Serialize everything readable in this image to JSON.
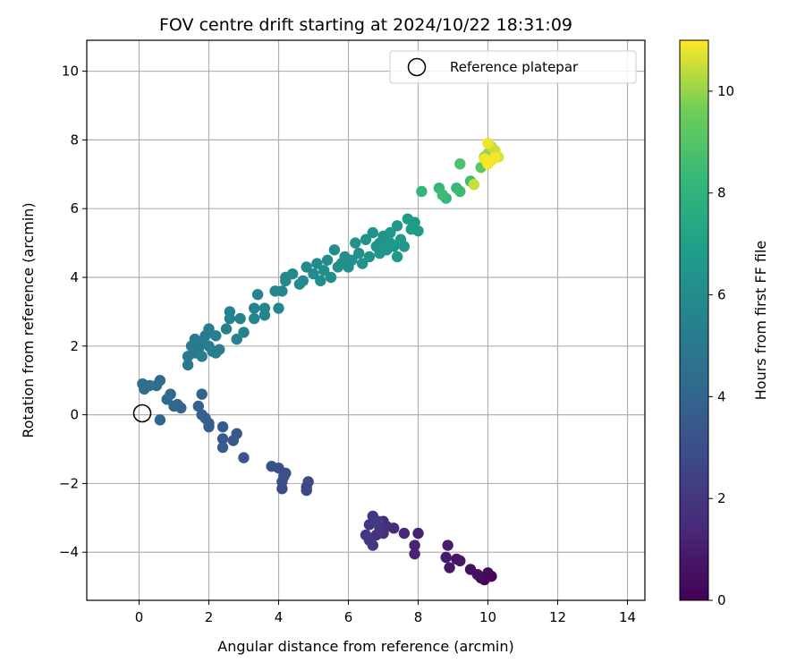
{
  "chart_data": {
    "type": "scatter",
    "title": "FOV centre drift starting at 2024/10/22 18:31:09",
    "xlabel": "Angular distance from reference (arcmin)",
    "ylabel": "Rotation from reference (arcmin)",
    "xlim": [
      -1.5,
      14.5
    ],
    "ylim": [
      -5.4,
      10.9
    ],
    "xticks": [
      0,
      2,
      4,
      6,
      8,
      10,
      12,
      14
    ],
    "yticks": [
      -4,
      -2,
      0,
      2,
      4,
      6,
      8,
      10
    ],
    "grid": true,
    "legend": {
      "placement": "top-right",
      "entries": [
        "Reference platepar"
      ]
    },
    "reference_point": {
      "x": 0,
      "y": 0
    },
    "colorbar": {
      "label": "Hours from first FF file",
      "range": [
        0,
        11
      ],
      "ticks": [
        0,
        2,
        4,
        6,
        8,
        10
      ],
      "colormap": "viridis"
    },
    "points": [
      [
        9.9,
        -4.8,
        0.1
      ],
      [
        10.1,
        -4.7,
        0.2
      ],
      [
        10.0,
        -4.6,
        0.3
      ],
      [
        9.8,
        -4.75,
        0.35
      ],
      [
        9.5,
        -4.5,
        0.5
      ],
      [
        9.7,
        -4.65,
        0.45
      ],
      [
        9.1,
        -4.2,
        0.7
      ],
      [
        9.2,
        -4.25,
        0.75
      ],
      [
        8.9,
        -4.45,
        0.8
      ],
      [
        8.8,
        -4.15,
        0.9
      ],
      [
        8.85,
        -3.8,
        1.0
      ],
      [
        8.0,
        -3.45,
        1.1
      ],
      [
        7.9,
        -3.8,
        1.2
      ],
      [
        7.9,
        -4.05,
        1.25
      ],
      [
        7.6,
        -3.45,
        1.4
      ],
      [
        7.3,
        -3.3,
        1.5
      ],
      [
        7.0,
        -3.1,
        1.6
      ],
      [
        7.1,
        -3.25,
        1.65
      ],
      [
        7.0,
        -3.45,
        1.7
      ],
      [
        6.8,
        -3.5,
        1.75
      ],
      [
        6.7,
        -2.95,
        1.85
      ],
      [
        6.9,
        -3.3,
        1.9
      ],
      [
        6.6,
        -3.2,
        1.95
      ],
      [
        6.5,
        -3.5,
        2.0
      ],
      [
        6.6,
        -3.65,
        2.05
      ],
      [
        6.7,
        -3.8,
        2.1
      ],
      [
        6.85,
        -3.1,
        2.15
      ],
      [
        4.8,
        -2.1,
        2.6
      ],
      [
        4.85,
        -1.95,
        2.65
      ],
      [
        4.8,
        -2.2,
        2.7
      ],
      [
        4.1,
        -2.15,
        2.85
      ],
      [
        4.2,
        -1.7,
        2.9
      ],
      [
        4.1,
        -1.95,
        2.95
      ],
      [
        4.0,
        -1.55,
        3.0
      ],
      [
        4.15,
        -1.8,
        3.05
      ],
      [
        3.8,
        -1.5,
        3.1
      ],
      [
        3.0,
        -1.25,
        3.3
      ],
      [
        2.8,
        -0.55,
        3.4
      ],
      [
        2.7,
        -0.75,
        3.45
      ],
      [
        2.4,
        -0.7,
        3.5
      ],
      [
        2.4,
        -0.95,
        3.55
      ],
      [
        2.4,
        -0.35,
        3.6
      ],
      [
        2.0,
        -0.25,
        3.7
      ],
      [
        2.0,
        -0.35,
        3.75
      ],
      [
        1.8,
        0.0,
        3.8
      ],
      [
        1.9,
        -0.1,
        3.85
      ],
      [
        1.7,
        0.25,
        3.9
      ],
      [
        1.8,
        0.6,
        3.95
      ],
      [
        1.2,
        0.2,
        4.0
      ],
      [
        1.1,
        0.3,
        4.05
      ],
      [
        0.6,
        -0.15,
        4.1
      ],
      [
        1.0,
        0.25,
        4.15
      ],
      [
        0.8,
        0.45,
        4.2
      ],
      [
        0.9,
        0.6,
        4.25
      ],
      [
        0.6,
        1.0,
        4.35
      ],
      [
        0.5,
        0.85,
        4.4
      ],
      [
        0.1,
        0.9,
        4.45
      ],
      [
        0.15,
        0.75,
        4.5
      ],
      [
        0.3,
        0.85,
        4.55
      ],
      [
        1.4,
        1.45,
        4.9
      ],
      [
        1.4,
        1.7,
        4.95
      ],
      [
        1.6,
        1.8,
        5.0
      ],
      [
        1.5,
        2.0,
        5.0
      ],
      [
        1.7,
        1.9,
        5.05
      ],
      [
        1.8,
        2.1,
        5.1
      ],
      [
        1.9,
        2.3,
        5.1
      ],
      [
        2.0,
        2.5,
        5.15
      ],
      [
        1.6,
        2.2,
        5.15
      ],
      [
        2.2,
        1.8,
        5.2
      ],
      [
        2.1,
        1.85,
        5.2
      ],
      [
        1.8,
        1.7,
        5.25
      ],
      [
        2.0,
        2.0,
        5.25
      ],
      [
        2.3,
        1.9,
        5.3
      ],
      [
        2.2,
        2.3,
        5.3
      ],
      [
        2.5,
        2.5,
        5.35
      ],
      [
        2.6,
        2.8,
        5.4
      ],
      [
        2.8,
        2.2,
        5.4
      ],
      [
        2.9,
        2.8,
        5.45
      ],
      [
        2.6,
        3.0,
        5.5
      ],
      [
        3.0,
        2.4,
        5.5
      ],
      [
        3.3,
        3.1,
        5.55
      ],
      [
        3.3,
        2.8,
        5.6
      ],
      [
        3.4,
        3.5,
        5.6
      ],
      [
        3.6,
        3.1,
        5.65
      ],
      [
        3.6,
        2.9,
        5.65
      ],
      [
        3.9,
        3.6,
        5.7
      ],
      [
        4.0,
        3.1,
        5.7
      ],
      [
        4.1,
        3.6,
        5.75
      ],
      [
        4.2,
        3.9,
        5.8
      ],
      [
        4.2,
        4.0,
        5.8
      ],
      [
        4.4,
        4.1,
        5.85
      ],
      [
        4.6,
        3.8,
        5.85
      ],
      [
        4.7,
        3.9,
        5.9
      ],
      [
        4.8,
        4.3,
        5.9
      ],
      [
        5.0,
        4.1,
        5.95
      ],
      [
        5.1,
        4.4,
        5.95
      ],
      [
        5.2,
        3.9,
        6.0
      ],
      [
        5.3,
        4.2,
        6.0
      ],
      [
        5.4,
        4.5,
        6.05
      ],
      [
        5.5,
        4.0,
        6.05
      ],
      [
        5.6,
        4.8,
        6.1
      ],
      [
        5.7,
        4.3,
        6.1
      ],
      [
        5.8,
        4.4,
        6.15
      ],
      [
        5.9,
        4.6,
        6.15
      ],
      [
        6.0,
        4.3,
        6.2
      ],
      [
        6.1,
        4.5,
        6.2
      ],
      [
        6.2,
        5.0,
        6.25
      ],
      [
        6.3,
        4.7,
        6.25
      ],
      [
        6.4,
        4.4,
        6.3
      ],
      [
        6.5,
        5.1,
        6.3
      ],
      [
        6.6,
        4.6,
        6.35
      ],
      [
        6.7,
        5.3,
        6.35
      ],
      [
        6.8,
        4.9,
        6.4
      ],
      [
        6.9,
        5.0,
        6.4
      ],
      [
        7.0,
        5.2,
        6.45
      ],
      [
        7.1,
        4.8,
        6.5
      ],
      [
        7.2,
        5.3,
        6.5
      ],
      [
        7.3,
        4.9,
        6.55
      ],
      [
        7.4,
        5.5,
        6.6
      ],
      [
        7.5,
        5.1,
        6.6
      ],
      [
        7.6,
        4.9,
        6.65
      ],
      [
        7.7,
        5.7,
        6.7
      ],
      [
        7.8,
        5.4,
        6.75
      ],
      [
        7.9,
        5.6,
        6.8
      ],
      [
        8.0,
        5.35,
        6.85
      ],
      [
        7.4,
        4.6,
        6.65
      ],
      [
        7.2,
        5.0,
        6.7
      ],
      [
        6.9,
        4.7,
        6.55
      ],
      [
        8.1,
        6.5,
        8.1
      ],
      [
        8.6,
        6.6,
        8.2
      ],
      [
        8.8,
        6.3,
        8.25
      ],
      [
        9.1,
        6.6,
        8.3
      ],
      [
        9.2,
        6.5,
        8.4
      ],
      [
        8.7,
        6.4,
        8.45
      ],
      [
        9.5,
        6.8,
        8.6
      ],
      [
        9.2,
        7.3,
        8.8
      ],
      [
        9.8,
        7.2,
        9.2
      ],
      [
        9.9,
        7.5,
        9.6
      ],
      [
        10.0,
        7.6,
        10.0
      ],
      [
        10.1,
        7.8,
        10.3
      ],
      [
        10.2,
        7.7,
        10.5
      ],
      [
        10.3,
        7.5,
        10.7
      ],
      [
        10.1,
        7.4,
        10.8
      ],
      [
        9.9,
        7.45,
        10.9
      ],
      [
        10.0,
        7.3,
        10.95
      ],
      [
        9.6,
        6.7,
        10.5
      ],
      [
        10.2,
        7.5,
        10.9
      ],
      [
        10.0,
        7.9,
        10.85
      ]
    ]
  }
}
